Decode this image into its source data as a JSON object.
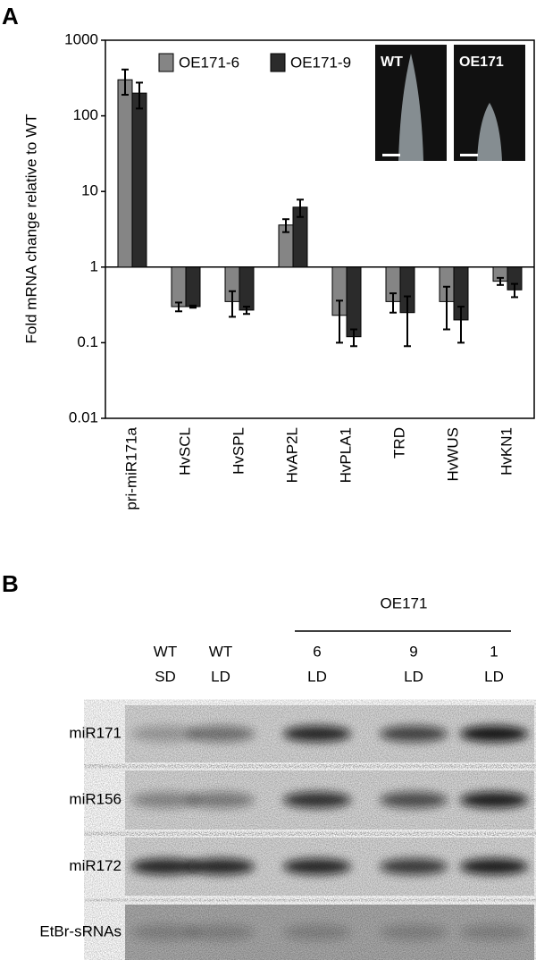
{
  "panel_a_label": "A",
  "chart_data": {
    "type": "bar",
    "yscale": "log",
    "y_label": "Fold mRNA change relative to WT",
    "categories": [
      "pri-miR171a",
      "HvSCL",
      "HvSPL",
      "HvAP2L",
      "HvPLA1",
      "TRD",
      "HvWUS",
      "HvKN1"
    ],
    "series": [
      {
        "name": "OE171-6",
        "color": "#858585",
        "values": [
          300,
          0.3,
          0.35,
          3.6,
          0.23,
          0.35,
          0.35,
          0.65
        ],
        "errors": [
          110,
          0.04,
          0.13,
          0.7,
          0.13,
          0.1,
          0.2,
          0.07
        ]
      },
      {
        "name": "OE171-9",
        "color": "#2b2b2b",
        "values": [
          200,
          0.3,
          0.27,
          6.2,
          0.12,
          0.25,
          0.2,
          0.5
        ],
        "errors": [
          75,
          0.01,
          0.03,
          1.6,
          0.03,
          0.16,
          0.1,
          0.1
        ]
      }
    ],
    "ylim": [
      0.01,
      1000
    ],
    "yticks": [
      0.01,
      0.1,
      1,
      10,
      100,
      1000
    ],
    "inset_labels": [
      "WT",
      "OE171"
    ]
  },
  "panel_b": {
    "label": "B",
    "group": "OE171",
    "lanes": [
      [
        "WT",
        "SD"
      ],
      [
        "WT",
        "LD"
      ],
      [
        "6",
        "LD"
      ],
      [
        "9",
        "LD"
      ],
      [
        "1",
        "LD"
      ]
    ],
    "rows": [
      "miR171",
      "miR156",
      "miR172",
      "EtBr-sRNAs"
    ]
  }
}
